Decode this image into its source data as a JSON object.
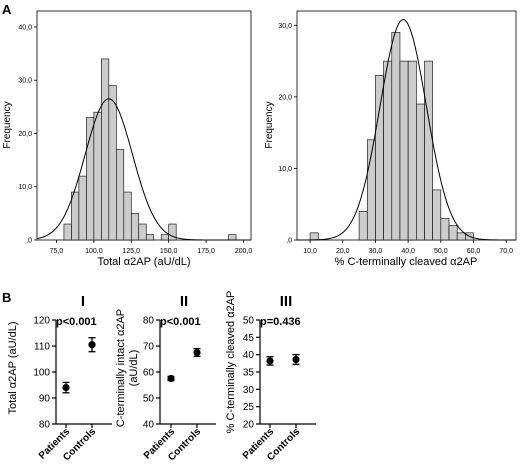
{
  "panel_labels": {
    "a": "A",
    "b": "B"
  },
  "chart_data": [
    {
      "type": "bar",
      "subtype": "histogram",
      "xlabel": "Total α2AP (aU/dL)",
      "ylabel": "Frequency",
      "x_ticks": [
        "75,0",
        "100,0",
        "125,0",
        "150,0",
        "175,0",
        "200,0"
      ],
      "y_ticks": [
        ",0",
        "10,0",
        "20,0",
        "30,0",
        "40,0"
      ],
      "xlim": [
        62,
        205
      ],
      "ylim": [
        0,
        43
      ],
      "bin_width": 5,
      "bin_starts": [
        80,
        85,
        90,
        95,
        100,
        105,
        110,
        115,
        120,
        125,
        130,
        135,
        140,
        145,
        150,
        155,
        160,
        165,
        170,
        175,
        180,
        185,
        190
      ],
      "values": [
        3,
        9,
        12,
        23,
        24,
        34,
        29,
        17,
        9,
        5,
        3,
        1,
        0,
        1,
        3,
        0,
        0,
        0,
        0,
        0,
        0,
        0,
        1
      ],
      "fit_curve": {
        "type": "normal",
        "mean": 110,
        "sd": 15.8,
        "peak": 26.5
      },
      "grid": false
    },
    {
      "type": "bar",
      "subtype": "histogram",
      "xlabel": "% C-terminally cleaved α2AP",
      "ylabel": "Frequency",
      "x_ticks": [
        "10,0",
        "20,0",
        "30,0",
        "40,0",
        "50,0",
        "60,0",
        "70,0"
      ],
      "y_ticks": [
        ",0",
        "10,0",
        "20,0",
        "30,0"
      ],
      "xlim": [
        6,
        73
      ],
      "ylim": [
        0,
        32
      ],
      "bin_width": 2.5,
      "bin_starts": [
        10,
        12.5,
        15,
        17.5,
        20,
        22.5,
        25,
        27.5,
        30,
        32.5,
        35,
        37.5,
        40,
        42.5,
        45,
        47.5,
        50,
        52.5,
        55,
        57.5
      ],
      "values": [
        1,
        0,
        0,
        0,
        0,
        0,
        4,
        14,
        23,
        25,
        29,
        25,
        25,
        19,
        25,
        7,
        3,
        2,
        1,
        1
      ],
      "fit_curve": {
        "type": "normal",
        "mean": 38.5,
        "sd": 7.1,
        "peak": 30.8
      },
      "grid": false
    },
    {
      "type": "scatter",
      "subtype": "mean_with_error",
      "panel_title": "I",
      "annotation": "p<0.001",
      "ylabel": "Total α2AP (aU/dL)",
      "categories": [
        "Patients",
        "Controls"
      ],
      "values": [
        94,
        110.5
      ],
      "error": [
        2,
        2.7
      ],
      "y_ticks": [
        80,
        90,
        100,
        110,
        120
      ],
      "ylim": [
        80,
        120
      ]
    },
    {
      "type": "scatter",
      "subtype": "mean_with_error",
      "panel_title": "II",
      "annotation": "p<0.001",
      "ylabel": "C-terminally intact α2AP (aU/dL)",
      "ylabel_lines": [
        "C-terminally intact α2AP",
        "(aU/dL)"
      ],
      "categories": [
        "Patients",
        "Controls"
      ],
      "values": [
        57.5,
        67.5
      ],
      "error": [
        0.8,
        1.5
      ],
      "y_ticks": [
        40,
        50,
        60,
        70,
        80
      ],
      "ylim": [
        40,
        80
      ]
    },
    {
      "type": "scatter",
      "subtype": "mean_with_error",
      "panel_title": "III",
      "annotation": "p=0.436",
      "ylabel": "% C-terminally cleaved α2AP",
      "categories": [
        "Patients",
        "Controls"
      ],
      "values": [
        38.2,
        38.6
      ],
      "error": [
        1.2,
        1.4
      ],
      "y_ticks": [
        20,
        25,
        30,
        35,
        40,
        45,
        50
      ],
      "ylim": [
        20,
        50
      ]
    }
  ]
}
